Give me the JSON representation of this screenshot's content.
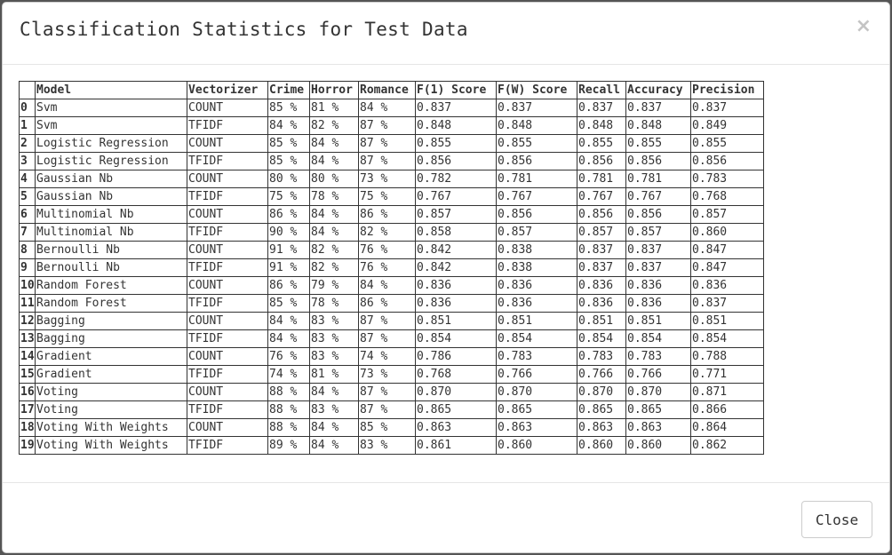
{
  "modal": {
    "title": "Classification Statistics for Test Data",
    "close_icon": "×",
    "close_button_label": "Close"
  },
  "table": {
    "columns": [
      "",
      "Model",
      "Vectorizer",
      "Crime",
      "Horror",
      "Romance",
      "F(1) Score",
      "F(W) Score",
      "Recall",
      "Accuracy",
      "Precision"
    ],
    "rows": [
      [
        "0",
        "Svm",
        "COUNT",
        "85 %",
        "81 %",
        "84 %",
        "0.837",
        "0.837",
        "0.837",
        "0.837",
        "0.837"
      ],
      [
        "1",
        "Svm",
        "TFIDF",
        "84 %",
        "82 %",
        "87 %",
        "0.848",
        "0.848",
        "0.848",
        "0.848",
        "0.849"
      ],
      [
        "2",
        "Logistic Regression",
        "COUNT",
        "85 %",
        "84 %",
        "87 %",
        "0.855",
        "0.855",
        "0.855",
        "0.855",
        "0.855"
      ],
      [
        "3",
        "Logistic Regression",
        "TFIDF",
        "85 %",
        "84 %",
        "87 %",
        "0.856",
        "0.856",
        "0.856",
        "0.856",
        "0.856"
      ],
      [
        "4",
        "Gaussian Nb",
        "COUNT",
        "80 %",
        "80 %",
        "73 %",
        "0.782",
        "0.781",
        "0.781",
        "0.781",
        "0.783"
      ],
      [
        "5",
        "Gaussian Nb",
        "TFIDF",
        "75 %",
        "78 %",
        "75 %",
        "0.767",
        "0.767",
        "0.767",
        "0.767",
        "0.768"
      ],
      [
        "6",
        "Multinomial Nb",
        "COUNT",
        "86 %",
        "84 %",
        "86 %",
        "0.857",
        "0.856",
        "0.856",
        "0.856",
        "0.857"
      ],
      [
        "7",
        "Multinomial Nb",
        "TFIDF",
        "90 %",
        "84 %",
        "82 %",
        "0.858",
        "0.857",
        "0.857",
        "0.857",
        "0.860"
      ],
      [
        "8",
        "Bernoulli Nb",
        "COUNT",
        "91 %",
        "82 %",
        "76 %",
        "0.842",
        "0.838",
        "0.837",
        "0.837",
        "0.847"
      ],
      [
        "9",
        "Bernoulli Nb",
        "TFIDF",
        "91 %",
        "82 %",
        "76 %",
        "0.842",
        "0.838",
        "0.837",
        "0.837",
        "0.847"
      ],
      [
        "10",
        "Random Forest",
        "COUNT",
        "86 %",
        "79 %",
        "84 %",
        "0.836",
        "0.836",
        "0.836",
        "0.836",
        "0.836"
      ],
      [
        "11",
        "Random Forest",
        "TFIDF",
        "85 %",
        "78 %",
        "86 %",
        "0.836",
        "0.836",
        "0.836",
        "0.836",
        "0.837"
      ],
      [
        "12",
        "Bagging",
        "COUNT",
        "84 %",
        "83 %",
        "87 %",
        "0.851",
        "0.851",
        "0.851",
        "0.851",
        "0.851"
      ],
      [
        "13",
        "Bagging",
        "TFIDF",
        "84 %",
        "83 %",
        "87 %",
        "0.854",
        "0.854",
        "0.854",
        "0.854",
        "0.854"
      ],
      [
        "14",
        "Gradient",
        "COUNT",
        "76 %",
        "83 %",
        "74 %",
        "0.786",
        "0.783",
        "0.783",
        "0.783",
        "0.788"
      ],
      [
        "15",
        "Gradient",
        "TFIDF",
        "74 %",
        "81 %",
        "73 %",
        "0.768",
        "0.766",
        "0.766",
        "0.766",
        "0.771"
      ],
      [
        "16",
        "Voting",
        "COUNT",
        "88 %",
        "84 %",
        "87 %",
        "0.870",
        "0.870",
        "0.870",
        "0.870",
        "0.871"
      ],
      [
        "17",
        "Voting",
        "TFIDF",
        "88 %",
        "83 %",
        "87 %",
        "0.865",
        "0.865",
        "0.865",
        "0.865",
        "0.866"
      ],
      [
        "18",
        "Voting With Weights",
        "COUNT",
        "88 %",
        "84 %",
        "85 %",
        "0.863",
        "0.863",
        "0.863",
        "0.863",
        "0.864"
      ],
      [
        "19",
        "Voting With Weights",
        "TFIDF",
        "89 %",
        "84 %",
        "83 %",
        "0.861",
        "0.860",
        "0.860",
        "0.860",
        "0.862"
      ]
    ]
  }
}
